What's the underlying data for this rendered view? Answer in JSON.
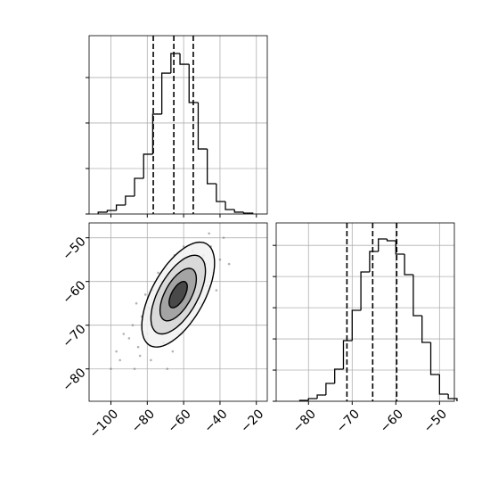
{
  "chart_data": [
    {
      "type": "histogram",
      "bins": [
        -107,
        -102,
        -97,
        -92,
        -87,
        -82,
        -77,
        -72,
        -67,
        -62,
        -57,
        -52,
        -47,
        -42,
        -37,
        -32,
        -27,
        -22
      ],
      "values": [
        20,
        39,
        98,
        196,
        392,
        657,
        1098,
        1548,
        1764,
        1646,
        1225,
        715,
        333,
        137,
        49,
        20,
        10
      ],
      "quantiles": [
        -76.7,
        -65.4,
        -54.7
      ],
      "xlim": [
        -112,
        -14
      ],
      "xticks": [
        -100,
        -80,
        -60,
        -40,
        -20
      ],
      "ylim": [
        0,
        1960
      ],
      "yticks": [
        0,
        500,
        1000,
        1500
      ],
      "grid": true,
      "color": "#000000"
    },
    {
      "type": "scatter",
      "x": [
        -63,
        -70,
        -55,
        -80,
        -48,
        -66,
        -60,
        -75,
        -58,
        -85,
        -52,
        -68,
        -62,
        -90,
        -45,
        -72,
        -57,
        -78,
        -50,
        -65,
        -83,
        -61,
        -69,
        -54,
        -95,
        -40,
        -73,
        -59,
        -87,
        -47,
        -64,
        -76,
        -53,
        -67,
        -81,
        -56,
        -71,
        -60,
        -88,
        -44,
        -100,
        -38,
        -66,
        -58,
        -79,
        -51,
        -63,
        -74,
        -93,
        -42,
        -69,
        -55,
        -84,
        -49,
        -77,
        -61,
        -97,
        -35,
        -86,
        -46
      ],
      "y": [
        -63,
        -66,
        -60,
        -72,
        -56,
        -61,
        -67,
        -64,
        -55,
        -75,
        -62,
        -70,
        -58,
        -73,
        -52,
        -60,
        -66,
        -78,
        -59,
        -54,
        -68,
        -71,
        -57,
        -64,
        -78,
        -55,
        -69,
        -62,
        -80,
        -61,
        -66,
        -70,
        -57,
        -64,
        -63,
        -69,
        -74,
        -52,
        -70,
        -58,
        -80,
        -50,
        -76,
        -59,
        -66,
        -65,
        -72,
        -58,
        -72,
        -62,
        -80,
        -53,
        -77,
        -54,
        -62,
        -64,
        -76,
        -56,
        -65,
        -49
      ],
      "center": [
        -63,
        -63
      ],
      "sigma": [
        10,
        6
      ],
      "rho": 0.6,
      "contour_levels": [
        2,
        1.5,
        1,
        0.5
      ],
      "xlim": [
        -112,
        -14
      ],
      "xticks": [
        {
          "value": -100,
          "label": "−100"
        },
        {
          "value": -80,
          "label": "−80"
        },
        {
          "value": -60,
          "label": "−60"
        },
        {
          "value": -40,
          "label": "−40"
        },
        {
          "value": -20,
          "label": "−20"
        }
      ],
      "ylim": [
        -87.4,
        -46.6
      ],
      "yticks": [
        {
          "value": -50,
          "label": "−50"
        },
        {
          "value": -60,
          "label": "−60"
        },
        {
          "value": -70,
          "label": "−70"
        },
        {
          "value": -80,
          "label": "−80"
        }
      ],
      "grid": true,
      "color": "#808080"
    },
    {
      "type": "histogram",
      "bins": [
        -82,
        -80,
        -78,
        -76,
        -74,
        -72,
        -70,
        -68,
        -66,
        -64,
        -62,
        -60,
        -58,
        -56,
        -54,
        -52,
        -50,
        -48,
        -46
      ],
      "values": [
        14,
        43,
        100,
        286,
        515,
        972,
        1459,
        2074,
        2402,
        2603,
        2574,
        2360,
        2031,
        1373,
        944,
        429,
        114,
        43
      ],
      "quantiles": [
        -71.2,
        -65.3,
        -59.8
      ],
      "xlim": [
        -87.4,
        -46.6
      ],
      "xticks": [
        {
          "value": -80,
          "label": "−80"
        },
        {
          "value": -70,
          "label": "−70"
        },
        {
          "value": -60,
          "label": "−60"
        },
        {
          "value": -50,
          "label": "−50"
        }
      ],
      "ylim": [
        0,
        2860
      ],
      "yticks": [
        0,
        500,
        1000,
        1500,
        2000,
        2500
      ],
      "grid": true,
      "color": "#000000"
    }
  ]
}
